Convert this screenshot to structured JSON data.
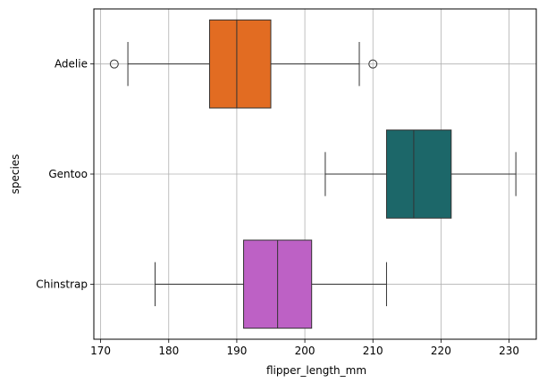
{
  "chart_data": {
    "type": "boxplot",
    "orientation": "horizontal",
    "title": "",
    "xlabel": "flipper_length_mm",
    "ylabel": "species",
    "xlim": [
      169,
      234
    ],
    "xticks": [
      170,
      180,
      190,
      200,
      210,
      220,
      230
    ],
    "grid": true,
    "categories": [
      "Adelie",
      "Gentoo",
      "Chinstrap"
    ],
    "boxes": [
      {
        "category": "Adelie",
        "color": "#e26c22",
        "whisker_low": 174,
        "q1": 186,
        "median": 190,
        "q3": 195,
        "whisker_high": 208,
        "outliers": [
          172,
          210
        ]
      },
      {
        "category": "Gentoo",
        "color": "#1c6769",
        "whisker_low": 203,
        "q1": 212,
        "median": 216,
        "q3": 221.5,
        "whisker_high": 231,
        "outliers": []
      },
      {
        "category": "Chinstrap",
        "color": "#bd61c5",
        "whisker_low": 178,
        "q1": 191,
        "median": 196,
        "q3": 201,
        "whisker_high": 212,
        "outliers": []
      }
    ]
  }
}
